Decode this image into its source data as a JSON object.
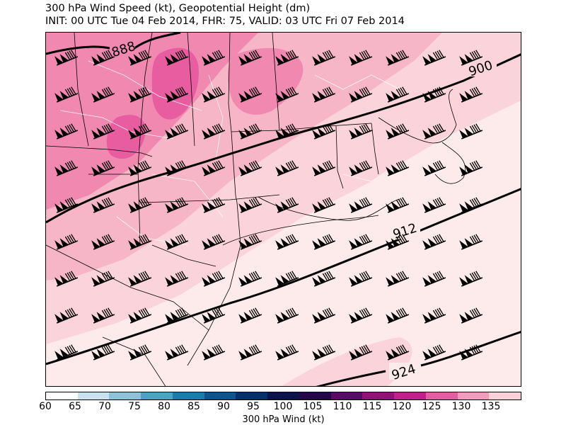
{
  "title_line1": "300 hPa Wind Speed (kt), Geopotential Height (dm)",
  "title_line2": "INIT: 00 UTC Tue 04 Feb 2014, FHR: 75, VALID: 03 UTC Fri 07 Feb 2014",
  "contour_labels": [
    "888",
    "900",
    "912",
    "924"
  ],
  "colorbar": {
    "label": "300 hPa Wind (kt)",
    "ticks": [
      "60",
      "65",
      "70",
      "75",
      "80",
      "85",
      "90",
      "95",
      "100",
      "105",
      "110",
      "115",
      "120",
      "125",
      "130",
      "135"
    ],
    "colors": [
      "#ffffff",
      "#c8e3ef",
      "#8cc3d9",
      "#4ca1c7",
      "#1b7bb0",
      "#0a5491",
      "#052f6e",
      "#0b124f",
      "#24064f",
      "#5a0a6a",
      "#8d127a",
      "#c0208c",
      "#e05fa3",
      "#f49bbd",
      "#fcd0da",
      "#ffffff"
    ]
  }
}
